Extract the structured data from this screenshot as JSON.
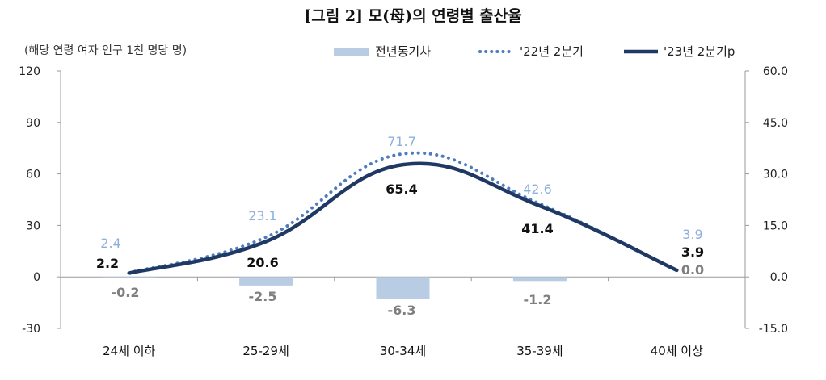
{
  "chart_data": {
    "type": "bar+line",
    "title": "[그림 2] 모(母)의 연령별 출산율",
    "unit_label": "(해당 연령 여자 인구 1천 명당 명)",
    "categories": [
      "24세 이하",
      "25-29세",
      "30-34세",
      "35-39세",
      "40세 이상"
    ],
    "series": [
      {
        "name": "전년동기차",
        "type": "bar",
        "axis": "right",
        "color": "#b8cce4",
        "values": [
          -0.2,
          -2.5,
          -6.3,
          -1.2,
          0.0
        ],
        "labels": [
          "-0.2",
          "-2.5",
          "-6.3",
          "-1.2",
          "0.0"
        ]
      },
      {
        "name": "'22년 2분기",
        "type": "line",
        "style": "dotted",
        "axis": "left",
        "color": "#4f7bbf",
        "values": [
          2.4,
          23.1,
          71.7,
          42.6,
          3.9
        ],
        "labels": [
          "2.4",
          "23.1",
          "71.7",
          "42.6",
          "3.9"
        ]
      },
      {
        "name": "'23년 2분기p",
        "type": "line",
        "style": "solid",
        "axis": "left",
        "color": "#1f3864",
        "values": [
          2.2,
          20.6,
          65.4,
          41.4,
          3.9
        ],
        "labels": [
          "2.2",
          "20.6",
          "65.4",
          "41.4",
          "3.9"
        ]
      }
    ],
    "y_left": {
      "min": -30,
      "max": 120,
      "ticks": [
        "120",
        "90",
        "60",
        "30",
        "0",
        "-30"
      ]
    },
    "y_right": {
      "min": -15,
      "max": 60,
      "ticks": [
        "60.0",
        "45.0",
        "30.0",
        "15.0",
        "0.0",
        "-15.0"
      ]
    },
    "legend": [
      "전년동기차",
      "'22년 2분기",
      "'23년 2분기p"
    ],
    "legend_position": "top",
    "grid": false
  }
}
